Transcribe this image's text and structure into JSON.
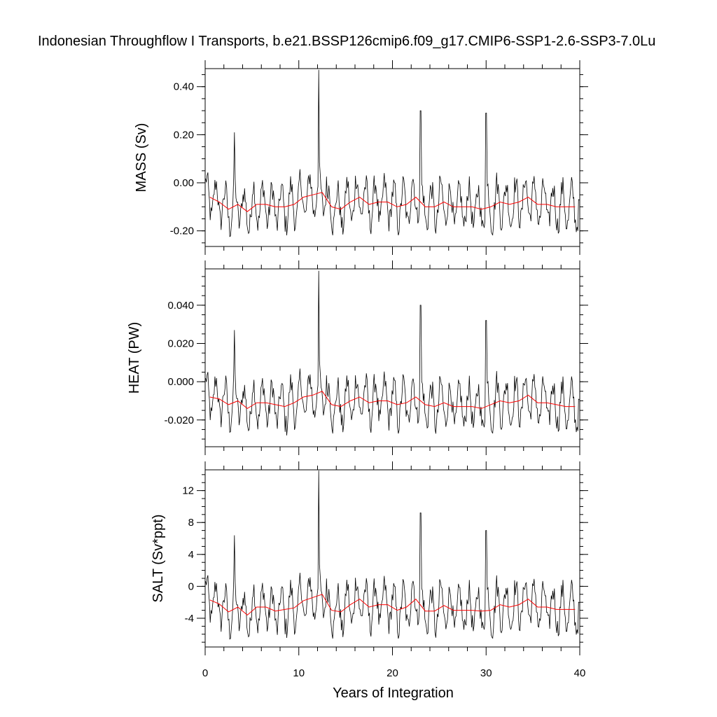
{
  "chart_data": {
    "type": "line",
    "title": "Indonesian Throughflow I Transports, b.e21.BSSP126cmip6.f09_g17.CMIP6-SSP1-2.6-SSP3-7.0Lu",
    "xlabel": "Years of Integration",
    "xlim": [
      0,
      40
    ],
    "xticks": [
      0,
      10,
      20,
      30,
      40
    ],
    "xtick_labels": [
      "0",
      "10",
      "20",
      "30",
      "40"
    ],
    "grid": false,
    "colors": {
      "monthly": "#000000",
      "annual": "#ff0000"
    },
    "annual_x": [
      0.5,
      1.5,
      2.5,
      3.5,
      4.5,
      5.5,
      6.5,
      7.5,
      8.5,
      9.5,
      10.5,
      11.5,
      12.5,
      13.5,
      14.5,
      15.5,
      16.5,
      17.5,
      18.5,
      19.5,
      20.5,
      21.5,
      22.5,
      23.5,
      24.5,
      25.5,
      26.5,
      27.5,
      28.5,
      29.5,
      30.5,
      31.5,
      32.5,
      33.5,
      34.5,
      35.5,
      36.5,
      37.5,
      38.5,
      39.5
    ],
    "spikes_x": [
      3.1,
      12.1,
      23.0,
      30.0
    ],
    "panels": [
      {
        "name": "mass",
        "ylabel": "MASS (Sv)",
        "ylim": [
          -0.265,
          0.475
        ],
        "yticks": [
          -0.2,
          0.0,
          0.2,
          0.4
        ],
        "ytick_labels": [
          "-0.20",
          "0.00",
          "0.20",
          "0.40"
        ],
        "minor_step": 0.05,
        "annual": [
          -0.06,
          -0.08,
          -0.11,
          -0.09,
          -0.12,
          -0.09,
          -0.09,
          -0.1,
          -0.1,
          -0.09,
          -0.06,
          -0.05,
          -0.04,
          -0.1,
          -0.11,
          -0.08,
          -0.06,
          -0.09,
          -0.08,
          -0.08,
          -0.1,
          -0.09,
          -0.06,
          -0.1,
          -0.1,
          -0.08,
          -0.1,
          -0.1,
          -0.1,
          -0.11,
          -0.1,
          -0.08,
          -0.09,
          -0.08,
          -0.06,
          -0.09,
          -0.09,
          -0.1,
          -0.1,
          -0.1
        ],
        "spike_peaks": [
          0.21,
          0.47,
          0.3,
          0.29
        ],
        "mean": -0.09,
        "amplitude": 0.11
      },
      {
        "name": "heat",
        "ylabel": "HEAT (PW)",
        "ylim": [
          -0.034,
          0.059
        ],
        "yticks": [
          -0.02,
          0.0,
          0.02,
          0.04
        ],
        "ytick_labels": [
          "-0.020",
          "0.000",
          "0.020",
          "0.040"
        ],
        "minor_step": 0.005,
        "annual": [
          -0.008,
          -0.009,
          -0.012,
          -0.01,
          -0.014,
          -0.011,
          -0.011,
          -0.012,
          -0.013,
          -0.011,
          -0.008,
          -0.007,
          -0.005,
          -0.012,
          -0.013,
          -0.01,
          -0.008,
          -0.011,
          -0.01,
          -0.01,
          -0.012,
          -0.011,
          -0.008,
          -0.012,
          -0.013,
          -0.011,
          -0.013,
          -0.013,
          -0.013,
          -0.014,
          -0.012,
          -0.01,
          -0.011,
          -0.01,
          -0.007,
          -0.011,
          -0.011,
          -0.012,
          -0.013,
          -0.013
        ],
        "spike_peaks": [
          0.027,
          0.058,
          0.04,
          0.032
        ],
        "mean": -0.011,
        "amplitude": 0.014
      },
      {
        "name": "salt",
        "ylabel": "SALT (Sv*ppt)",
        "ylim": [
          -7.6,
          14.6
        ],
        "yticks": [
          -4,
          0,
          4,
          8,
          12
        ],
        "ytick_labels": [
          "-4",
          "0",
          "4",
          "8",
          "12"
        ],
        "minor_step": 1,
        "annual": [
          -1.7,
          -2.2,
          -3.2,
          -2.6,
          -3.6,
          -2.6,
          -2.6,
          -3.1,
          -2.9,
          -2.7,
          -1.8,
          -1.4,
          -1.0,
          -3.0,
          -3.2,
          -2.3,
          -1.6,
          -2.6,
          -2.3,
          -2.3,
          -3.0,
          -2.6,
          -1.6,
          -3.1,
          -3.1,
          -2.4,
          -3.0,
          -3.0,
          -3.0,
          -3.1,
          -3.0,
          -2.3,
          -2.6,
          -2.3,
          -1.6,
          -2.6,
          -2.6,
          -2.9,
          -2.9,
          -2.9
        ],
        "spike_peaks": [
          6.4,
          14.5,
          9.2,
          7.0
        ],
        "mean": -2.6,
        "amplitude": 3.3
      }
    ]
  }
}
